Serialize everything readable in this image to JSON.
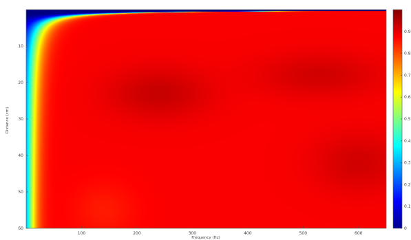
{
  "chart_data": {
    "type": "heatmap",
    "title": "",
    "xlabel": "Frequency (Hz)",
    "ylabel": "Distance (cm)",
    "xlim": [
      0,
      650
    ],
    "ylim": [
      0,
      60
    ],
    "y_direction": "down",
    "x_ticks": [
      100,
      200,
      300,
      400,
      500,
      600
    ],
    "x_tick_labels": [
      "100",
      "200",
      "300",
      "400",
      "500",
      "600"
    ],
    "y_ticks": [
      10,
      20,
      30,
      40,
      50,
      60
    ],
    "y_tick_labels": [
      "10",
      "20",
      "30",
      "40",
      "50",
      "60"
    ],
    "colorbar": {
      "colormap": "jet",
      "range": [
        0,
        1
      ],
      "ticks": [
        0,
        0.1,
        0.2,
        0.3,
        0.4,
        0.5,
        0.6,
        0.7,
        0.8,
        0.9
      ],
      "tick_labels": [
        "0",
        "0.1",
        "0.2",
        "0.3",
        "0.4",
        "0.5",
        "0.6",
        "0.7",
        "0.8",
        "0.9"
      ]
    },
    "grid": false,
    "description_values": {
      "x": [
        25,
        50,
        100,
        200,
        300,
        400,
        500,
        600,
        650
      ],
      "y": [
        2,
        5,
        10,
        20,
        30,
        40,
        50,
        60
      ],
      "z": [
        [
          0.0,
          0.05,
          0.2,
          0.35,
          0.45,
          0.5,
          0.55,
          0.6,
          0.62
        ],
        [
          0.02,
          0.2,
          0.45,
          0.7,
          0.78,
          0.8,
          0.82,
          0.84,
          0.85
        ],
        [
          0.1,
          0.45,
          0.78,
          0.9,
          0.92,
          0.92,
          0.92,
          0.92,
          0.92
        ],
        [
          0.3,
          0.75,
          0.9,
          0.93,
          0.95,
          0.93,
          0.92,
          0.92,
          0.92
        ],
        [
          0.5,
          0.85,
          0.88,
          0.94,
          0.93,
          0.91,
          0.9,
          0.91,
          0.92
        ],
        [
          0.6,
          0.86,
          0.88,
          0.89,
          0.9,
          0.89,
          0.88,
          0.93,
          0.93
        ],
        [
          0.68,
          0.86,
          0.87,
          0.88,
          0.89,
          0.88,
          0.87,
          0.9,
          0.91
        ],
        [
          0.7,
          0.86,
          0.87,
          0.87,
          0.88,
          0.89,
          0.89,
          0.9,
          0.91
        ]
      ]
    }
  }
}
